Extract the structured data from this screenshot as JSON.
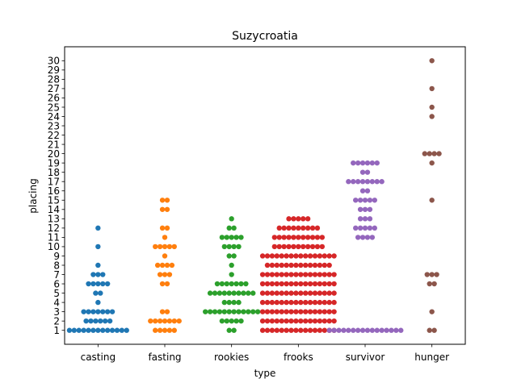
{
  "chart_data": {
    "type": "scatter",
    "subtype": "swarm",
    "title": "Suzycroatia",
    "xlabel": "type",
    "ylabel": "placing",
    "ylim": [
      -0.5,
      31.5
    ],
    "yticks": [
      "1",
      "2",
      "3",
      "4",
      "5",
      "6",
      "7",
      "8",
      "9",
      "10",
      "11",
      "12",
      "13",
      "14",
      "15",
      "16",
      "17",
      "18",
      "19",
      "20",
      "21",
      "22",
      "23",
      "24",
      "25",
      "26",
      "27",
      "28",
      "29",
      "30"
    ],
    "grid": false,
    "categories": [
      "casting",
      "fasting",
      "rookies",
      "frooks",
      "survivor",
      "hunger"
    ],
    "series": [
      {
        "category": "casting",
        "color": "#1f77b4",
        "counts": {
          "1": 13,
          "2": 6,
          "3": 7,
          "4": 1,
          "5": 2,
          "6": 5,
          "7": 3,
          "8": 1,
          "10": 1,
          "12": 1
        }
      },
      {
        "category": "fasting",
        "color": "#ff7f0e",
        "counts": {
          "1": 5,
          "2": 7,
          "3": 2,
          "6": 2,
          "7": 3,
          "8": 4,
          "9": 1,
          "10": 5,
          "11": 1,
          "12": 2,
          "14": 2,
          "15": 2
        }
      },
      {
        "category": "rookies",
        "color": "#2ca02c",
        "counts": {
          "1": 2,
          "2": 5,
          "3": 12,
          "4": 4,
          "5": 10,
          "6": 7,
          "7": 1,
          "8": 1,
          "9": 2,
          "10": 4,
          "11": 5,
          "12": 2,
          "13": 1
        }
      },
      {
        "category": "frooks",
        "color": "#d62728",
        "counts": {
          "1": 16,
          "2": 16,
          "3": 16,
          "4": 16,
          "5": 16,
          "6": 16,
          "7": 16,
          "8": 14,
          "9": 16,
          "10": 11,
          "11": 11,
          "12": 9,
          "13": 5
        }
      },
      {
        "category": "survivor",
        "color": "#9467bd",
        "counts": {
          "1": 16,
          "11": 4,
          "12": 5,
          "13": 3,
          "14": 3,
          "15": 5,
          "16": 2,
          "17": 8,
          "18": 2,
          "19": 6
        }
      },
      {
        "category": "hunger",
        "color": "#8c564b",
        "counts": {
          "1": 2,
          "3": 1,
          "6": 2,
          "7": 3,
          "15": 1,
          "19": 1,
          "20": 4,
          "24": 1,
          "25": 1,
          "27": 1,
          "30": 1
        }
      }
    ]
  }
}
